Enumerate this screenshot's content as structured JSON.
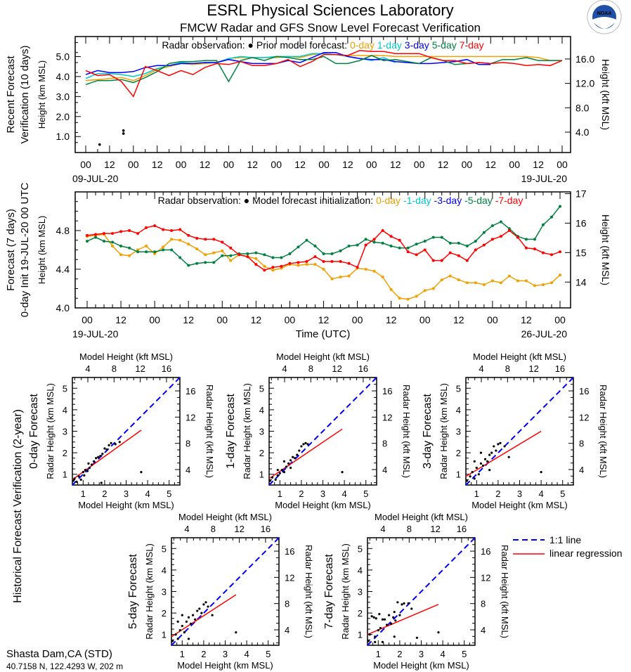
{
  "header": {
    "title": "ESRL Physical Sciences Laboratory",
    "subtitle": "FMCW Radar and GFS Snow Level Forecast Verification",
    "logo_text": "NOAA"
  },
  "colors": {
    "0-day": "#f0a000",
    "1-day": "#00c8d0",
    "3-day": "#0000ff",
    "5-day": "#008040",
    "7-day": "#ff0000",
    "side_label": "#0000ff",
    "one_to_one": "#0000ff",
    "regression": "#ff0000"
  },
  "station": {
    "name": "Shasta Dam,CA (STD)",
    "location": "40.7158 N, 122.4293 W, 202 m"
  },
  "chart_data": [
    {
      "type": "line",
      "side_label": [
        "Recent Forecast",
        "Verification (10 days)"
      ],
      "ylabel": "Height (km MSL)",
      "ylabel_right": "Height (kft MSL)",
      "legend_obs": "Radar observation:",
      "legend_model": "Prior model forecast:",
      "date_start": "09-JUL-20",
      "date_end": "19-JUL-20",
      "time_start": "09-JUL-20 00 UTC",
      "time_step_hours": 6,
      "ylim": [
        0.2,
        6.0
      ],
      "yticks": [
        "1.0",
        "2.0",
        "3.0",
        "4.0",
        "5.0"
      ],
      "yticks_right": [
        "4.0",
        "8.0",
        "12.0",
        "16.0"
      ],
      "xticks": [
        "00",
        "12",
        "00",
        "12",
        "00",
        "12",
        "00",
        "12",
        "00",
        "12",
        "00",
        "12",
        "00",
        "12",
        "00",
        "12",
        "00",
        "12",
        "00",
        "12",
        "00"
      ],
      "observations": [
        {
          "hour": 7,
          "value": 0.6
        },
        {
          "hour": 19,
          "value": 1.3
        },
        {
          "hour": 19,
          "value": 1.15
        }
      ],
      "series": [
        {
          "name": "0-day",
          "values": [
            3.8,
            3.85,
            3.9,
            3.95,
            3.8,
            4.05,
            4.35,
            4.5,
            4.65,
            4.6,
            4.65,
            4.7,
            4.9,
            4.95,
            4.95,
            4.95,
            4.95,
            5.0,
            4.95,
            5.1,
            5.15,
            5.1,
            5.05,
            5.05,
            5.05,
            5.05,
            5.0,
            5.0,
            5.0,
            5.0,
            5.0,
            5.0,
            5.0,
            5.0,
            5.0,
            5.0,
            5.0,
            5.0,
            4.95,
            4.8,
            4.8
          ]
        },
        {
          "name": "1-day",
          "values": [
            3.9,
            4.15,
            4.15,
            4.1,
            4.0,
            4.15,
            4.4,
            4.55,
            4.7,
            4.65,
            4.7,
            4.7,
            4.9,
            5.0,
            4.95,
            4.95,
            5.0,
            5.0,
            5.0,
            5.15,
            5.15,
            5.1,
            5.0,
            4.9,
            4.8,
            4.95,
            4.7
          ]
        },
        {
          "name": "3-day",
          "values": [
            4.1,
            4.3,
            4.2,
            4.2,
            4.25,
            4.45,
            4.55,
            4.55,
            4.65,
            4.65,
            4.7,
            4.7,
            4.85,
            4.75,
            4.65,
            4.65,
            4.65,
            4.8,
            4.7,
            4.95,
            5.2,
            5.2,
            5.0,
            4.9,
            4.85,
            4.85,
            4.75,
            4.7,
            4.65,
            4.65,
            4.7,
            4.75,
            4.85,
            4.6,
            4.6
          ]
        },
        {
          "name": "5-day",
          "values": [
            3.6,
            3.8,
            3.8,
            3.85,
            3.7,
            3.95,
            4.25,
            4.65,
            4.75,
            4.75,
            4.8,
            4.8,
            3.75,
            4.8,
            4.95,
            4.8,
            5.0,
            4.95,
            4.85,
            4.85,
            5.0,
            4.65,
            4.65,
            4.8,
            5.05,
            4.8,
            4.85,
            4.75,
            4.65,
            4.95,
            4.8,
            4.6,
            4.65,
            4.7,
            4.65,
            4.85,
            4.85,
            4.95,
            4.8,
            4.8,
            4.8
          ]
        },
        {
          "name": "7-day",
          "values": [
            4.3,
            4.05,
            4.1,
            3.75,
            3.0,
            4.5,
            4.3,
            4.05,
            4.3,
            4.1,
            4.45,
            4.65,
            4.6,
            4.75,
            4.55,
            4.55,
            4.65,
            4.85,
            4.5,
            4.75,
            5.1,
            5.1,
            5.05,
            5.3,
            5.25,
            5.25,
            5.15,
            5.15,
            5.15,
            4.95,
            4.8,
            4.8,
            4.65,
            4.7,
            4.65,
            4.7,
            4.65,
            4.55,
            4.6,
            4.55,
            4.8
          ]
        }
      ]
    },
    {
      "type": "line",
      "side_label": [
        "Forecast (7 days)",
        "0-day Init 19-JUL-20 00 UTC"
      ],
      "ylabel": "Height (km MSL)",
      "ylabel_right": "Height (kft MSL)",
      "xlabel": "Time (UTC)",
      "legend_obs": "Radar observation:",
      "legend_model": "Model forecast initialization:",
      "date_start": "19-JUL-20",
      "date_end": "26-JUL-20",
      "time_start": "19-JUL-20 00 UTC",
      "time_step_hours": 3,
      "ylim": [
        4.0,
        5.2
      ],
      "yticks": [
        "4.0",
        "4.4",
        "4.8"
      ],
      "yticks_right": [
        "14",
        "15",
        "16",
        "17"
      ],
      "xticks": [
        "00",
        "12",
        "00",
        "12",
        "00",
        "12",
        "00",
        "12",
        "00",
        "12",
        "00",
        "12",
        "00",
        "12",
        "00"
      ],
      "series": [
        {
          "name": "0-day",
          "label": "0-day",
          "values": [
            4.74,
            4.75,
            4.76,
            4.64,
            4.55,
            4.54,
            4.6,
            4.64,
            4.56,
            4.63,
            4.71,
            4.7,
            4.66,
            4.61,
            4.55,
            4.57,
            4.59,
            4.49,
            4.55,
            4.53,
            4.51,
            4.43,
            4.39,
            4.41,
            4.45,
            4.44,
            4.45,
            4.45,
            4.4,
            4.3,
            4.32,
            4.33,
            4.41,
            4.4,
            4.38,
            4.32,
            4.19,
            4.1,
            4.09,
            4.12,
            4.18,
            4.2,
            4.29,
            4.33,
            4.29,
            4.26,
            4.26,
            4.24,
            4.28,
            4.26,
            4.33,
            4.28,
            4.28,
            4.23,
            4.24,
            4.26,
            4.34
          ]
        },
        {
          "name": "1-day",
          "label": "-1-day",
          "values": []
        },
        {
          "name": "3-day",
          "label": "-3-day",
          "values": []
        },
        {
          "name": "5-day",
          "label": "-5-day",
          "values": [
            4.69,
            4.73,
            4.69,
            4.68,
            4.64,
            4.62,
            4.58,
            4.58,
            4.58,
            4.6,
            4.6,
            4.52,
            4.44,
            4.46,
            4.47,
            4.47,
            4.54,
            4.54,
            4.56,
            4.56,
            4.57,
            4.55,
            4.52,
            4.52,
            4.56,
            4.63,
            4.7,
            4.64,
            4.56,
            4.56,
            4.59,
            4.64,
            4.65,
            4.71,
            4.68,
            4.67,
            4.64,
            4.62,
            4.62,
            4.66,
            4.69,
            4.73,
            4.73,
            4.67,
            4.67,
            4.64,
            4.69,
            4.78,
            4.85,
            4.89,
            4.82,
            4.74,
            4.71,
            4.71,
            4.86,
            4.94,
            5.05
          ]
        },
        {
          "name": "7-day",
          "label": "-7-day",
          "values": [
            4.75,
            4.76,
            4.77,
            4.77,
            4.79,
            4.8,
            4.77,
            4.83,
            4.85,
            4.81,
            4.8,
            4.81,
            4.75,
            4.72,
            4.71,
            4.71,
            4.68,
            4.62,
            4.55,
            4.53,
            4.45,
            4.39,
            4.42,
            4.43,
            4.46,
            4.47,
            4.48,
            4.53,
            4.48,
            4.48,
            4.48,
            4.46,
            4.42,
            4.65,
            4.71,
            4.8,
            4.74,
            4.7,
            4.58,
            4.55,
            4.6,
            4.49,
            4.49,
            4.57,
            4.54,
            4.49,
            4.6,
            4.65,
            4.71,
            4.74,
            4.8,
            4.73,
            4.62,
            4.61,
            4.57,
            4.55,
            4.58
          ]
        }
      ]
    },
    {
      "type": "scatter",
      "group_label": "Historical Forecast Verification (2-year)",
      "xlabel": "Model Height (km MSL)",
      "xlabel_top": "Model Height (kft MSL)",
      "ylabel": "Radar Height (km MSL)",
      "ylabel_right": "Radar Height (kft MSL)",
      "xlim": [
        0.5,
        5.5
      ],
      "ylim": [
        0.5,
        5.5
      ],
      "ticks_km": [
        "1",
        "2",
        "3",
        "4",
        "5"
      ],
      "ticks_kft": [
        "4",
        "8",
        "12",
        "16"
      ],
      "legend": {
        "one_to_one": "1:1 line",
        "regression": "linear regression"
      },
      "panels": [
        {
          "name": "0-day Forecast",
          "regression": [
            [
              0.5,
              0.75
            ],
            [
              3.7,
              3.05
            ]
          ],
          "points": [
            [
              0.55,
              0.7
            ],
            [
              0.6,
              0.8
            ],
            [
              0.7,
              0.65
            ],
            [
              0.8,
              0.9
            ],
            [
              0.9,
              0.75
            ],
            [
              1.0,
              1.1
            ],
            [
              1.05,
              0.95
            ],
            [
              1.1,
              1.2
            ],
            [
              1.2,
              1.15
            ],
            [
              1.3,
              1.3
            ],
            [
              1.4,
              1.45
            ],
            [
              1.5,
              1.6
            ],
            [
              1.6,
              1.75
            ],
            [
              1.7,
              1.8
            ],
            [
              1.8,
              1.85
            ],
            [
              1.9,
              1.95
            ],
            [
              2.0,
              2.2
            ],
            [
              2.1,
              2.15
            ],
            [
              2.2,
              2.35
            ],
            [
              2.3,
              2.45
            ],
            [
              2.5,
              2.4
            ],
            [
              2.7,
              2.5
            ],
            [
              3.7,
              1.1
            ],
            [
              1.25,
              1.5
            ],
            [
              1.85,
              0.6
            ]
          ]
        },
        {
          "name": "1-day Forecast",
          "regression": [
            [
              0.5,
              0.8
            ],
            [
              3.9,
              3.1
            ]
          ],
          "points": [
            [
              0.55,
              0.7
            ],
            [
              0.65,
              0.85
            ],
            [
              0.8,
              0.75
            ],
            [
              0.9,
              0.95
            ],
            [
              1.0,
              1.05
            ],
            [
              1.1,
              1.2
            ],
            [
              1.2,
              1.1
            ],
            [
              1.3,
              1.35
            ],
            [
              1.4,
              1.5
            ],
            [
              1.5,
              1.65
            ],
            [
              1.6,
              1.8
            ],
            [
              1.7,
              1.75
            ],
            [
              1.8,
              1.9
            ],
            [
              1.9,
              2.1
            ],
            [
              2.0,
              2.3
            ],
            [
              2.1,
              2.4
            ],
            [
              2.2,
              2.45
            ],
            [
              2.3,
              2.4
            ],
            [
              1.2,
              1.6
            ],
            [
              0.9,
              1.2
            ],
            [
              3.9,
              1.1
            ],
            [
              1.5,
              1.3
            ]
          ]
        },
        {
          "name": "3-day Forecast",
          "regression": [
            [
              0.5,
              0.9
            ],
            [
              4.0,
              3.0
            ]
          ],
          "points": [
            [
              0.55,
              0.7
            ],
            [
              0.7,
              0.9
            ],
            [
              0.8,
              1.1
            ],
            [
              0.9,
              0.8
            ],
            [
              1.0,
              1.3
            ],
            [
              1.1,
              1.0
            ],
            [
              1.2,
              1.5
            ],
            [
              1.3,
              1.4
            ],
            [
              1.4,
              1.7
            ],
            [
              1.5,
              1.6
            ],
            [
              1.6,
              1.9
            ],
            [
              1.7,
              2.0
            ],
            [
              1.8,
              2.3
            ],
            [
              1.9,
              2.1
            ],
            [
              2.0,
              2.4
            ],
            [
              2.1,
              2.45
            ],
            [
              2.3,
              2.3
            ],
            [
              2.5,
              1.8
            ],
            [
              1.2,
              2.0
            ],
            [
              0.9,
              1.6
            ],
            [
              4.0,
              1.1
            ],
            [
              1.6,
              1.2
            ]
          ]
        },
        {
          "name": "5-day Forecast",
          "regression": [
            [
              0.5,
              0.9
            ],
            [
              3.5,
              2.85
            ]
          ],
          "points": [
            [
              0.55,
              0.7
            ],
            [
              0.7,
              1.0
            ],
            [
              0.8,
              0.8
            ],
            [
              0.9,
              1.2
            ],
            [
              1.0,
              1.4
            ],
            [
              1.1,
              1.1
            ],
            [
              1.2,
              1.6
            ],
            [
              1.3,
              1.8
            ],
            [
              1.4,
              1.5
            ],
            [
              1.5,
              1.9
            ],
            [
              1.6,
              1.7
            ],
            [
              1.7,
              2.1
            ],
            [
              1.8,
              2.2
            ],
            [
              1.9,
              2.0
            ],
            [
              2.0,
              2.4
            ],
            [
              2.1,
              2.5
            ],
            [
              2.2,
              2.3
            ],
            [
              2.4,
              1.9
            ],
            [
              1.0,
              1.9
            ],
            [
              1.3,
              0.8
            ],
            [
              3.5,
              1.1
            ],
            [
              0.8,
              1.6
            ]
          ]
        },
        {
          "name": "7-day Forecast",
          "regression": [
            [
              0.5,
              1.0
            ],
            [
              3.8,
              2.4
            ]
          ],
          "points": [
            [
              0.55,
              0.7
            ],
            [
              0.6,
              1.0
            ],
            [
              0.7,
              1.85
            ],
            [
              0.8,
              1.8
            ],
            [
              0.85,
              0.9
            ],
            [
              0.9,
              1.75
            ],
            [
              1.0,
              1.2
            ],
            [
              1.05,
              1.95
            ],
            [
              1.1,
              1.3
            ],
            [
              1.2,
              1.7
            ],
            [
              1.3,
              1.7
            ],
            [
              1.4,
              1.45
            ],
            [
              1.5,
              1.9
            ],
            [
              1.6,
              1.5
            ],
            [
              1.7,
              1.8
            ],
            [
              1.75,
              2.05
            ],
            [
              1.8,
              1.65
            ],
            [
              1.9,
              2.5
            ],
            [
              2.0,
              1.9
            ],
            [
              2.1,
              2.4
            ],
            [
              2.2,
              2.45
            ],
            [
              2.4,
              2.45
            ],
            [
              2.55,
              2.2
            ],
            [
              1.75,
              0.9
            ],
            [
              2.8,
              0.85
            ],
            [
              3.8,
              1.1
            ],
            [
              1.2,
              0.65
            ],
            [
              0.85,
              0.65
            ]
          ]
        }
      ]
    }
  ]
}
